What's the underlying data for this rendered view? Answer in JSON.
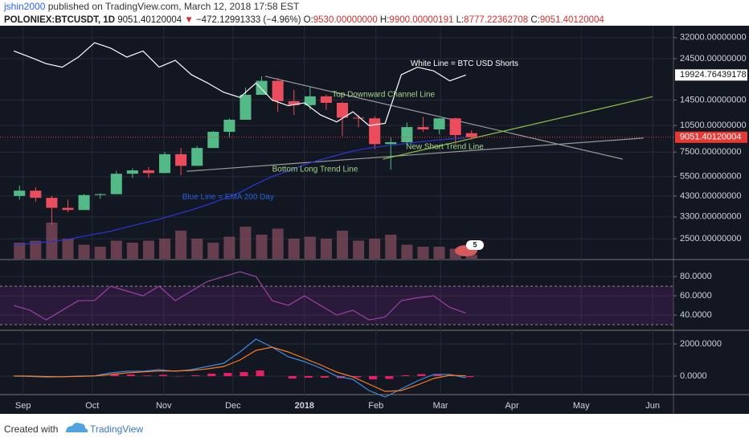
{
  "header": {
    "author": "jshin2000",
    "published": "published on TradingView.com, March 12, 2018 17:58 EST",
    "symbol": "POLONIEX:BTCUSDT, 1D",
    "last": "9051.40120004",
    "direction": "▼",
    "change": "−472.12991333 (−4.96%)",
    "ohlc": [
      {
        "label": "O:",
        "value": "9530.00000000"
      },
      {
        "label": "H:",
        "value": "9900.00000191"
      },
      {
        "label": "L:",
        "value": "8777.22362708"
      },
      {
        "label": "C:",
        "value": "9051.40120004"
      }
    ]
  },
  "chart_data": [
    {
      "type": "candlestick",
      "log": true,
      "up_color": "#53b987",
      "down_color": "#eb4d5c",
      "x": [
        "2017-08-28",
        "2017-09-04",
        "2017-09-11",
        "2017-09-18",
        "2017-09-25",
        "2017-10-02",
        "2017-10-09",
        "2017-10-16",
        "2017-10-23",
        "2017-10-30",
        "2017-11-06",
        "2017-11-13",
        "2017-11-20",
        "2017-11-27",
        "2017-12-04",
        "2017-12-11",
        "2017-12-18",
        "2017-12-25",
        "2018-01-01",
        "2018-01-08",
        "2018-01-15",
        "2018-01-22",
        "2018-01-29",
        "2018-02-05",
        "2018-02-12",
        "2018-02-19",
        "2018-02-26",
        "2018-03-05",
        "2018-03-12"
      ],
      "open": [
        4300,
        4600,
        4200,
        3700,
        3600,
        4350,
        4400,
        5700,
        5950,
        5750,
        7300,
        6300,
        7900,
        9700,
        11300,
        15500,
        18500,
        14300,
        13600,
        15200,
        14000,
        11600,
        11500,
        8300,
        8500,
        10300,
        10000,
        11500,
        9530
      ],
      "high": [
        4900,
        4800,
        4300,
        4100,
        4400,
        4450,
        5900,
        6100,
        6200,
        7500,
        7900,
        8100,
        9800,
        11500,
        17000,
        19600,
        19200,
        16500,
        17200,
        15500,
        14200,
        12000,
        11800,
        9000,
        10900,
        11700,
        11500,
        11600,
        9900.00000191
      ],
      "low": [
        4100,
        4000,
        2970,
        3500,
        3600,
        4150,
        4400,
        5400,
        5400,
        5750,
        5600,
        6300,
        7900,
        9000,
        11300,
        15500,
        12500,
        12000,
        12800,
        12800,
        9200,
        10300,
        7800,
        6000,
        8400,
        9700,
        9400,
        8300,
        8777.22362708
      ],
      "close": [
        4600,
        4200,
        3700,
        3600,
        4350,
        4400,
        5700,
        5950,
        5750,
        7300,
        6300,
        7900,
        9700,
        11300,
        15500,
        18500,
        14300,
        13600,
        15200,
        14000,
        11600,
        11500,
        8300,
        8500,
        10300,
        10000,
        11500,
        9300,
        9051.40120004
      ],
      "volume": [
        40,
        45,
        90,
        50,
        35,
        30,
        45,
        40,
        45,
        50,
        70,
        50,
        40,
        55,
        80,
        60,
        75,
        50,
        55,
        50,
        70,
        45,
        50,
        60,
        35,
        30,
        30,
        25,
        10
      ],
      "vlim": [
        0,
        100
      ],
      "volume_color": "#8a5060",
      "series": [
        {
          "color": "#ffffff",
          "values": [
            27000,
            25000,
            23000,
            22000,
            25000,
            30000,
            28000,
            25000,
            27000,
            22000,
            24000,
            20000,
            18000,
            16000,
            15000,
            18000,
            14500,
            13500,
            14000,
            12000,
            11000,
            12500,
            10500,
            10800,
            20000,
            22000,
            21000,
            18500,
            19924.76439178
          ]
        },
        {
          "color": "#2b35d8",
          "values": [
            2300,
            2350,
            2400,
            2450,
            2550,
            2650,
            2750,
            2900,
            3050,
            3200,
            3400,
            3600,
            3850,
            4150,
            4500,
            5000,
            5500,
            5900,
            6400,
            6800,
            7200,
            7600,
            7900,
            8100,
            8300,
            8500,
            8700,
            8850,
            8950
          ]
        }
      ],
      "ylim": [
        1940,
        35000
      ],
      "yticks": [
        {
          "value": 32000,
          "label": "32000.00000000"
        },
        {
          "value": 24500,
          "label": "24500.00000000"
        },
        {
          "value": 14500,
          "label": "14500.00000000"
        },
        {
          "value": 10500,
          "label": "10500.00000000"
        },
        {
          "value": 7500,
          "label": "7500.00000000"
        },
        {
          "value": 5500,
          "label": "5500.00000000"
        },
        {
          "value": 4300,
          "label": "4300.00000000"
        },
        {
          "value": 3300,
          "label": "3300.00000000"
        },
        {
          "value": 2500,
          "label": "2500.00000000"
        }
      ],
      "xlim": [
        "2017-08-22",
        "2018-06-10"
      ],
      "xticks": [
        {
          "value": "2017-09-01",
          "label": "Sep"
        },
        {
          "value": "2017-10-01",
          "label": "Oct"
        },
        {
          "value": "2017-11-01",
          "label": "Nov"
        },
        {
          "value": "2017-12-01",
          "label": "Dec"
        },
        {
          "value": "2018-01-01",
          "label": "2018"
        },
        {
          "value": "2018-02-01",
          "label": "Feb"
        },
        {
          "value": "2018-03-01",
          "label": "Mar"
        },
        {
          "value": "2018-04-01",
          "label": "Apr"
        },
        {
          "value": "2018-05-01",
          "label": "May"
        },
        {
          "value": "2018-06-01",
          "label": "Jun"
        }
      ],
      "price_labels": [
        {
          "value": 19924.76439178,
          "label": "19924.76439178",
          "color": "#ffffff"
        },
        {
          "value": 9051.40120004,
          "label": "9051.40120004",
          "color": "#e53935"
        }
      ],
      "trendlines": [
        {
          "color": "#9a9a9a",
          "points": [
            [
              "2017-12-15",
              19600
            ],
            [
              "2018-05-19",
              6860
            ]
          ]
        },
        {
          "color": "#9a9a9a",
          "points": [
            [
              "2017-11-11",
              5880
            ],
            [
              "2018-05-28",
              8960
            ]
          ]
        },
        {
          "color": "#8bc34a",
          "points": [
            [
              "2018-02-04",
              6860
            ],
            [
              "2018-06-01",
              15150
            ]
          ]
        }
      ],
      "annotations": [
        {
          "text": "White Line = BTC USD Shorts",
          "color": "#ffffff",
          "x": "2018-02-16",
          "y": 23000
        },
        {
          "text": "Top Downward Channel Line",
          "color": "#a5d68a",
          "x": "2018-01-13",
          "y": 15500
        },
        {
          "text": "New Short Trend Line",
          "color": "#a5d68a",
          "x": "2018-02-14",
          "y": 7990
        },
        {
          "text": "Bottom Long Trend Line",
          "color": "#a5d68a",
          "x": "2017-12-18",
          "y": 6030
        },
        {
          "text": "Blue Line = EMA 200 Day",
          "color": "#2b5cd8",
          "x": "2017-11-09",
          "y": 4230
        }
      ],
      "event_badge": "5"
    },
    {
      "type": "line",
      "x_from": 0,
      "series": [
        {
          "color": "#9c3fa8",
          "values": [
            50,
            45,
            35,
            45,
            55,
            55,
            70,
            65,
            60,
            70,
            55,
            65,
            75,
            80,
            85,
            80,
            55,
            50,
            60,
            50,
            40,
            45,
            35,
            38,
            55,
            58,
            60,
            48,
            42
          ]
        }
      ],
      "band": [
        30,
        70
      ],
      "ylim": [
        25,
        96
      ],
      "yticks": [
        {
          "value": 80,
          "label": "80.0000"
        },
        {
          "value": 60,
          "label": "60.0000"
        },
        {
          "value": 40,
          "label": "40.0000"
        }
      ]
    },
    {
      "type": "macd",
      "histogram_color": "#e91e63",
      "series": [
        {
          "color": "#3c8ce7",
          "values": [
            0,
            -20,
            -60,
            -40,
            0,
            20,
            200,
            300,
            300,
            400,
            300,
            400,
            600,
            800,
            1500,
            2300,
            1800,
            1200,
            900,
            500,
            0,
            -200,
            -900,
            -1300,
            -800,
            -300,
            100,
            100,
            -100
          ]
        },
        {
          "color": "#ff7a1a",
          "values": [
            10,
            0,
            -30,
            -40,
            -20,
            10,
            100,
            200,
            260,
            320,
            320,
            350,
            450,
            600,
            1000,
            1600,
            1800,
            1500,
            1100,
            700,
            250,
            -50,
            -500,
            -950,
            -900,
            -550,
            -150,
            50,
            20
          ]
        }
      ],
      "histogram": [
        -10,
        -20,
        -30,
        0,
        20,
        10,
        100,
        100,
        40,
        80,
        -20,
        50,
        150,
        200,
        250,
        350,
        0,
        -150,
        -100,
        -100,
        -125,
        -75,
        -200,
        -175,
        50,
        125,
        125,
        25,
        -60
      ],
      "ylim": [
        -1100,
        2800
      ],
      "yticks": [
        {
          "value": 2000,
          "label": "2000.0000"
        },
        {
          "value": 0,
          "label": "0.0000"
        }
      ]
    }
  ],
  "footer": {
    "created_with": "Created with",
    "brand": "TradingView"
  }
}
